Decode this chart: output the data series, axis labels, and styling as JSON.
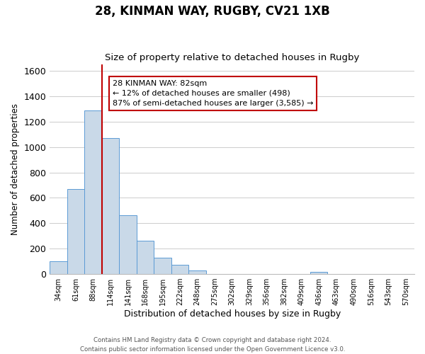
{
  "title_line1": "28, KINMAN WAY, RUGBY, CV21 1XB",
  "title_line2": "Size of property relative to detached houses in Rugby",
  "xlabel": "Distribution of detached houses by size in Rugby",
  "ylabel": "Number of detached properties",
  "bar_labels": [
    "34sqm",
    "61sqm",
    "88sqm",
    "114sqm",
    "141sqm",
    "168sqm",
    "195sqm",
    "222sqm",
    "248sqm",
    "275sqm",
    "302sqm",
    "329sqm",
    "356sqm",
    "382sqm",
    "409sqm",
    "436sqm",
    "463sqm",
    "490sqm",
    "516sqm",
    "543sqm",
    "570sqm"
  ],
  "bar_values": [
    100,
    670,
    1290,
    1070,
    465,
    265,
    130,
    75,
    30,
    0,
    0,
    0,
    0,
    0,
    0,
    15,
    0,
    0,
    0,
    0,
    0
  ],
  "bar_color": "#c9d9e8",
  "bar_edge_color": "#5b9bd5",
  "vline_x": 2.5,
  "vline_color": "#c00000",
  "ylim": [
    0,
    1650
  ],
  "yticks": [
    0,
    200,
    400,
    600,
    800,
    1000,
    1200,
    1400,
    1600
  ],
  "ann_title": "28 KINMAN WAY: 82sqm",
  "ann_line2": "← 12% of detached houses are smaller (498)",
  "ann_line3": "87% of semi-detached houses are larger (3,585) →",
  "ann_box_edge_color": "#c00000",
  "footer_line1": "Contains HM Land Registry data © Crown copyright and database right 2024.",
  "footer_line2": "Contains public sector information licensed under the Open Government Licence v3.0.",
  "grid_color": "#cccccc",
  "background_color": "#ffffff"
}
